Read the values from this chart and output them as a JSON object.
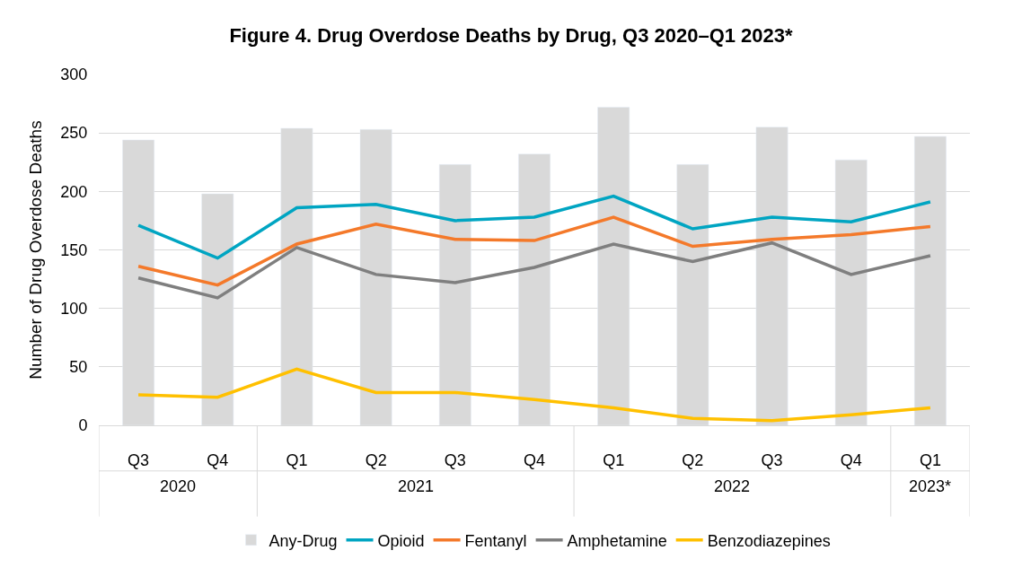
{
  "chart_data": {
    "type": "bar",
    "title": "Figure 4. Drug Overdose Deaths by Drug, Q3 2020–Q1 2023*",
    "ylabel": "Number of Drug Overdose Deaths",
    "categories": [
      "Q3",
      "Q4",
      "Q1",
      "Q2",
      "Q3",
      "Q4",
      "Q1",
      "Q2",
      "Q3",
      "Q4",
      "Q1"
    ],
    "annotations": [
      "2020",
      "2021",
      "2022",
      "2023*"
    ],
    "series": [
      {
        "name": "Any-Drug",
        "color": "#d9d9d9",
        "values": [
          244,
          198,
          254,
          253,
          223,
          232,
          272,
          223,
          255,
          227,
          247
        ]
      },
      {
        "name": "Opioid",
        "type": "line",
        "color": "#00a5c2",
        "values": [
          171,
          143,
          186,
          189,
          175,
          178,
          196,
          168,
          178,
          174,
          191
        ]
      },
      {
        "name": "Fentanyl",
        "type": "line",
        "color": "#f4792a",
        "values": [
          136,
          120,
          155,
          172,
          159,
          158,
          178,
          153,
          159,
          163,
          170
        ]
      },
      {
        "name": "Amphetamine",
        "type": "line",
        "color": "#7f7f7f",
        "values": [
          126,
          109,
          152,
          129,
          122,
          135,
          155,
          140,
          156,
          129,
          145
        ]
      },
      {
        "name": "Benzodiazepines",
        "type": "line",
        "color": "#ffc000",
        "values": [
          26,
          24,
          48,
          28,
          28,
          22,
          15,
          6,
          4,
          9,
          15
        ]
      }
    ],
    "ylim": [
      0,
      300
    ],
    "yticks": [
      0,
      50,
      100,
      150,
      200,
      250,
      300
    ],
    "grid": "y",
    "legend": "bottom",
    "marker": "none",
    "line_style": "solid"
  }
}
